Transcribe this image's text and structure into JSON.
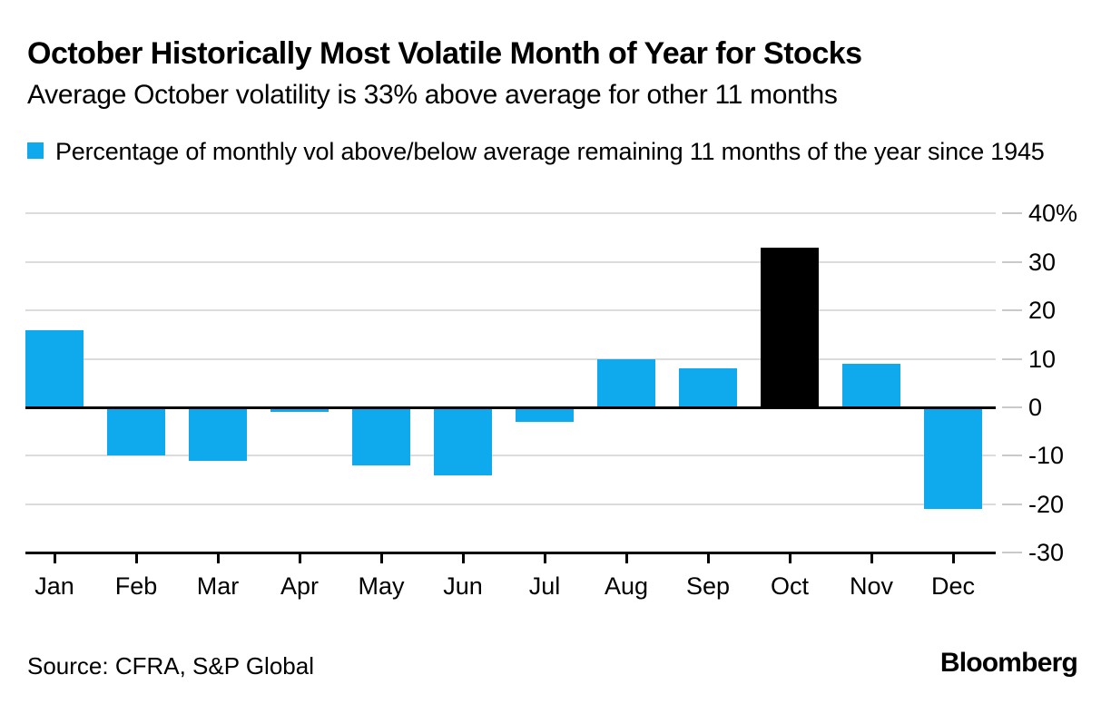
{
  "header": {
    "title": "October Historically Most Volatile Month of Year for Stocks",
    "subtitle": "Average October volatility is 33% above average for other 11 months"
  },
  "legend": {
    "label": "Percentage of monthly vol above/below average remaining 11 months of the year since 1945",
    "swatch_color": "#0fa9ee"
  },
  "chart_data": {
    "type": "bar",
    "title": "October Historically Most Volatile Month of Year for Stocks",
    "subtitle": "Average October volatility is 33% above average for other 11 months",
    "legend_label": "Percentage of monthly vol above/below average remaining 11 months of the year since 1945",
    "categories": [
      "Jan",
      "Feb",
      "Mar",
      "Apr",
      "May",
      "Jun",
      "Jul",
      "Aug",
      "Sep",
      "Oct",
      "Nov",
      "Dec"
    ],
    "values": [
      16,
      -10,
      -11,
      -1,
      -12,
      -14,
      -3,
      10,
      8,
      33,
      9,
      -21
    ],
    "bar_colors": [
      "#0fa9ee",
      "#0fa9ee",
      "#0fa9ee",
      "#0fa9ee",
      "#0fa9ee",
      "#0fa9ee",
      "#0fa9ee",
      "#0fa9ee",
      "#0fa9ee",
      "#000000",
      "#0fa9ee",
      "#0fa9ee"
    ],
    "highlight_category": "Oct",
    "xlabel": "",
    "ylabel": "",
    "ylim": [
      -30,
      40
    ],
    "yticks": [
      40,
      30,
      20,
      10,
      0,
      -10,
      -20,
      -30
    ],
    "ytick_labels": [
      "40%",
      "30",
      "20",
      "10",
      "0",
      "-10",
      "-20",
      "-30"
    ],
    "grid": true,
    "axis_side": "right",
    "legend_position": "top-left"
  },
  "footer": {
    "source": "Source: CFRA, S&P Global",
    "brand": "Bloomberg"
  },
  "colors": {
    "bar_blue": "#0fa9ee",
    "bar_black": "#000000",
    "gridline": "#dcdcdc",
    "tick_dash": "#c9c9c9",
    "axis": "#000000",
    "background": "#ffffff",
    "text": "#000000"
  }
}
